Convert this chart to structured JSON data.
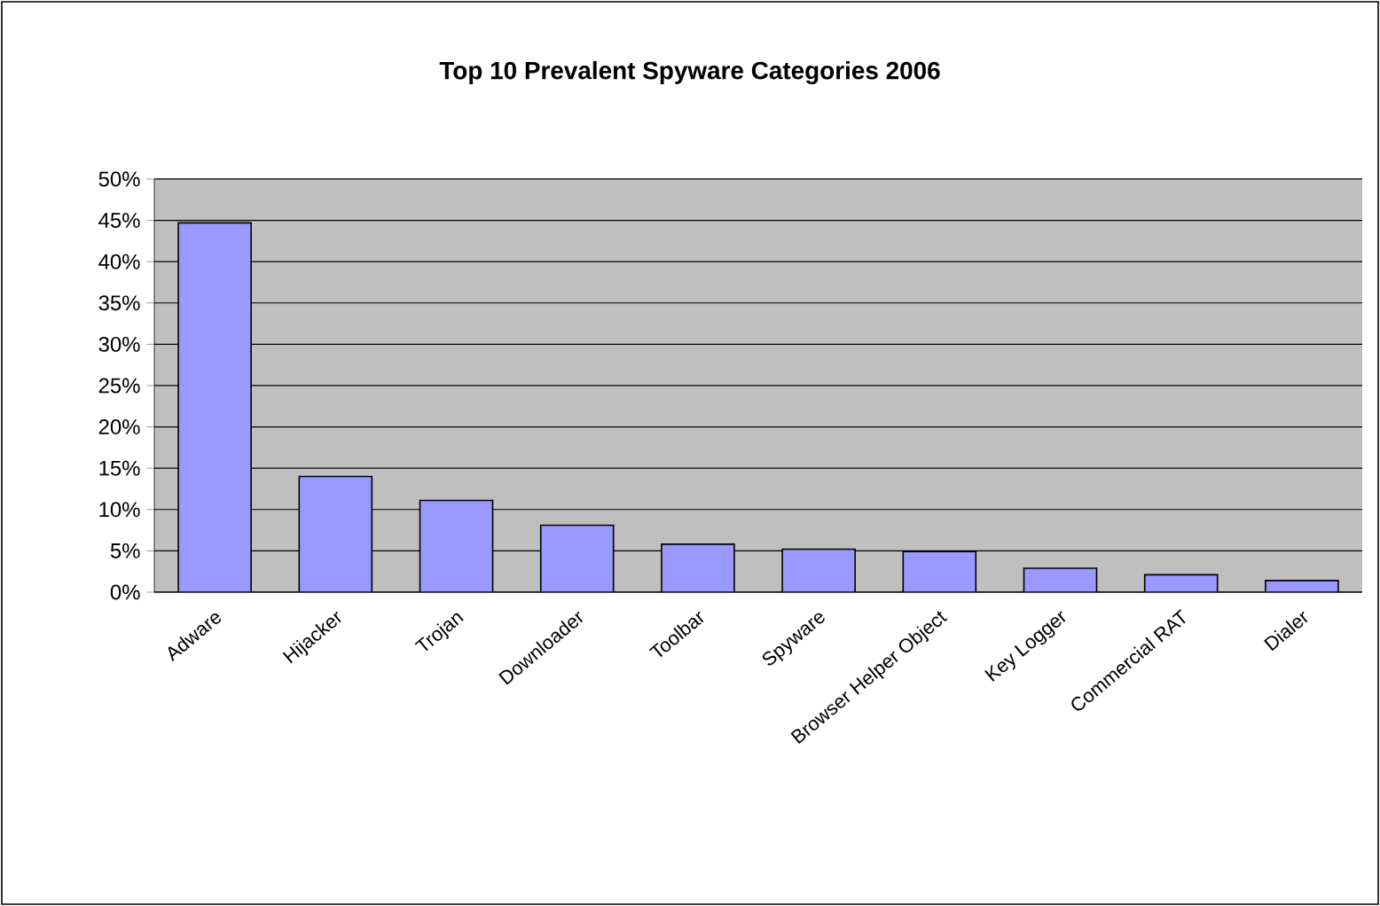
{
  "chart_data": {
    "type": "bar",
    "title": "Top 10 Prevalent Spyware Categories 2006",
    "categories": [
      "Adware",
      "Hijacker",
      "Trojan",
      "Downloader",
      "Toolbar",
      "Spyware",
      "Browser Helper Object",
      "Key Logger",
      "Commercial RAT",
      "Dialer"
    ],
    "values": [
      44.7,
      14.0,
      11.1,
      8.1,
      5.8,
      5.2,
      4.9,
      2.9,
      2.1,
      1.4
    ],
    "color": "#9999ff",
    "ylim": [
      0,
      50
    ],
    "yticks": [
      {
        "value": 0,
        "label": "0%"
      },
      {
        "value": 5,
        "label": "5%"
      },
      {
        "value": 10,
        "label": "10%"
      },
      {
        "value": 15,
        "label": "15%"
      },
      {
        "value": 20,
        "label": "20%"
      },
      {
        "value": 25,
        "label": "25%"
      },
      {
        "value": 30,
        "label": "30%"
      },
      {
        "value": 35,
        "label": "35%"
      },
      {
        "value": 40,
        "label": "40%"
      },
      {
        "value": 45,
        "label": "45%"
      },
      {
        "value": 50,
        "label": "50%"
      }
    ],
    "grid": "y"
  }
}
